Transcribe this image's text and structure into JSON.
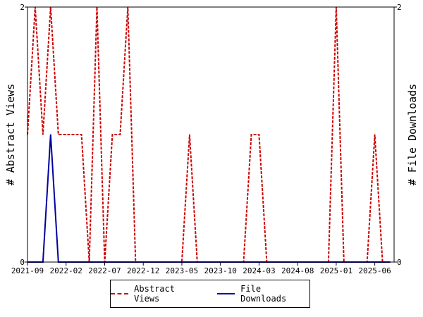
{
  "chart_data": {
    "type": "line",
    "ylabel_left": "# Abstract Views",
    "ylabel_right": "# File Downloads",
    "ylim": [
      0,
      2
    ],
    "y_ticks_left": [
      "0",
      "2"
    ],
    "y_ticks_right": [
      "0",
      "2"
    ],
    "x_ticks": [
      "2021-09",
      "2022-02",
      "2022-07",
      "2022-12",
      "2023-05",
      "2023-10",
      "2024-03",
      "2024-08",
      "2025-01",
      "2025-06"
    ],
    "x_start": "2021-09",
    "x_end": "2025-08",
    "legend_position": "bottom",
    "series": [
      {
        "name": "Abstract Views",
        "color": "#cc0000",
        "style": "dashed",
        "axis": "left",
        "points": [
          [
            "2021-09",
            1
          ],
          [
            "2021-10",
            2
          ],
          [
            "2021-11",
            1
          ],
          [
            "2021-12",
            2
          ],
          [
            "2022-01",
            1
          ],
          [
            "2022-02",
            1
          ],
          [
            "2022-03",
            1
          ],
          [
            "2022-04",
            1
          ],
          [
            "2022-05",
            0
          ],
          [
            "2022-06",
            2
          ],
          [
            "2022-07",
            0
          ],
          [
            "2022-08",
            1
          ],
          [
            "2022-09",
            1
          ],
          [
            "2022-10",
            2
          ],
          [
            "2022-11",
            0
          ],
          [
            "2022-12",
            0
          ],
          [
            "2023-01",
            0
          ],
          [
            "2023-02",
            0
          ],
          [
            "2023-03",
            0
          ],
          [
            "2023-04",
            0
          ],
          [
            "2023-05",
            0
          ],
          [
            "2023-06",
            1
          ],
          [
            "2023-07",
            0
          ],
          [
            "2023-08",
            0
          ],
          [
            "2023-09",
            0
          ],
          [
            "2023-10",
            0
          ],
          [
            "2023-11",
            0
          ],
          [
            "2023-12",
            0
          ],
          [
            "2024-01",
            0
          ],
          [
            "2024-02",
            1
          ],
          [
            "2024-03",
            1
          ],
          [
            "2024-04",
            0
          ],
          [
            "2024-05",
            0
          ],
          [
            "2024-06",
            0
          ],
          [
            "2024-07",
            0
          ],
          [
            "2024-08",
            0
          ],
          [
            "2024-09",
            0
          ],
          [
            "2024-10",
            0
          ],
          [
            "2024-11",
            0
          ],
          [
            "2024-12",
            0
          ],
          [
            "2025-01",
            2
          ],
          [
            "2025-02",
            0
          ],
          [
            "2025-03",
            0
          ],
          [
            "2025-04",
            0
          ],
          [
            "2025-05",
            0
          ],
          [
            "2025-06",
            1
          ],
          [
            "2025-07",
            0
          ],
          [
            "2025-08",
            0
          ]
        ]
      },
      {
        "name": "File Downloads",
        "color": "#0000a0",
        "style": "solid",
        "axis": "right",
        "points": [
          [
            "2021-09",
            0
          ],
          [
            "2021-10",
            0
          ],
          [
            "2021-11",
            0
          ],
          [
            "2021-12",
            1
          ],
          [
            "2022-01",
            0
          ],
          [
            "2022-02",
            0
          ],
          [
            "2022-03",
            0
          ],
          [
            "2022-04",
            0
          ],
          [
            "2022-05",
            0
          ],
          [
            "2022-06",
            0
          ],
          [
            "2022-07",
            0
          ],
          [
            "2022-08",
            0
          ],
          [
            "2022-09",
            0
          ],
          [
            "2022-10",
            0
          ],
          [
            "2022-11",
            0
          ],
          [
            "2022-12",
            0
          ],
          [
            "2023-01",
            0
          ],
          [
            "2023-02",
            0
          ],
          [
            "2023-03",
            0
          ],
          [
            "2023-04",
            0
          ],
          [
            "2023-05",
            0
          ],
          [
            "2023-06",
            0
          ],
          [
            "2023-07",
            0
          ],
          [
            "2023-08",
            0
          ],
          [
            "2023-09",
            0
          ],
          [
            "2023-10",
            0
          ],
          [
            "2023-11",
            0
          ],
          [
            "2023-12",
            0
          ],
          [
            "2024-01",
            0
          ],
          [
            "2024-02",
            0
          ],
          [
            "2024-03",
            0
          ],
          [
            "2024-04",
            0
          ],
          [
            "2024-05",
            0
          ],
          [
            "2024-06",
            0
          ],
          [
            "2024-07",
            0
          ],
          [
            "2024-08",
            0
          ],
          [
            "2024-09",
            0
          ],
          [
            "2024-10",
            0
          ],
          [
            "2024-11",
            0
          ],
          [
            "2024-12",
            0
          ],
          [
            "2025-01",
            0
          ],
          [
            "2025-02",
            0
          ],
          [
            "2025-03",
            0
          ],
          [
            "2025-04",
            0
          ],
          [
            "2025-05",
            0
          ],
          [
            "2025-06",
            0
          ],
          [
            "2025-07",
            0
          ],
          [
            "2025-08",
            0
          ]
        ]
      }
    ]
  }
}
